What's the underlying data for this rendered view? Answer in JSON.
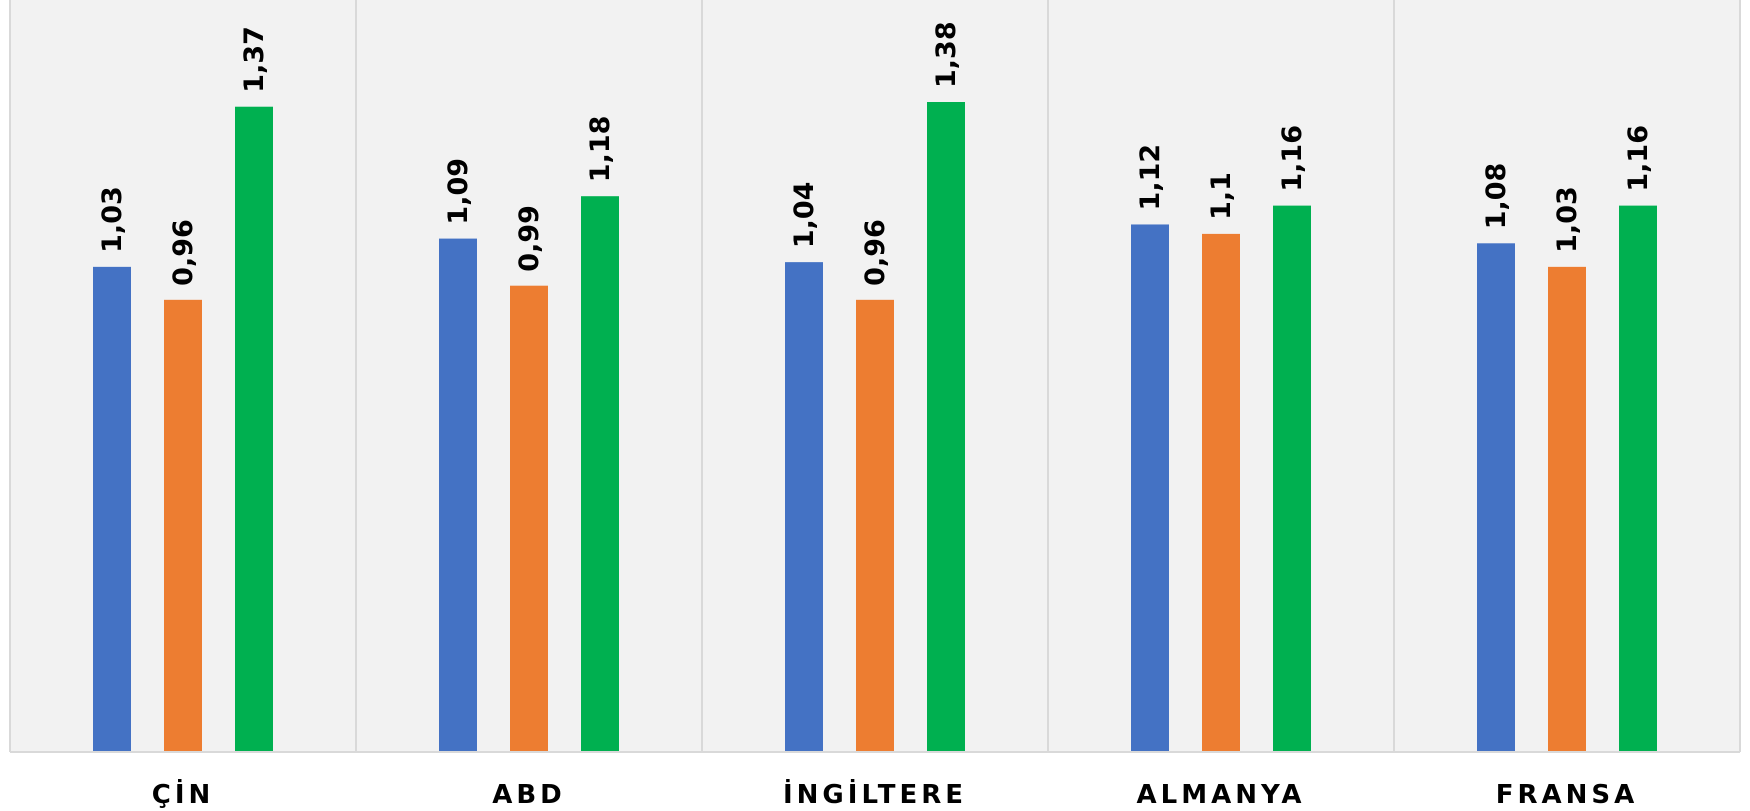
{
  "chart_data": {
    "type": "bar",
    "categories": [
      "ÇİN",
      "ABD",
      "İNGİLTERE",
      "ALMANYA",
      "FRANSA"
    ],
    "series": [
      {
        "values": [
          1.03,
          1.09,
          1.04,
          1.12,
          1.08
        ],
        "labels": [
          "1,03",
          "1,09",
          "1,04",
          "1,12",
          "1,08"
        ],
        "color": "#4472C4"
      },
      {
        "values": [
          0.96,
          0.99,
          0.96,
          1.1,
          1.03
        ],
        "labels": [
          "0,96",
          "0,99",
          "0,96",
          "1,1",
          "1,03"
        ],
        "color": "#ED7D31"
      },
      {
        "values": [
          1.37,
          1.18,
          1.38,
          1.16,
          1.16
        ],
        "labels": [
          "1,37",
          "1,18",
          "1,38",
          "1,16",
          "1,16"
        ],
        "color": "#00B050"
      }
    ],
    "ylim": [
      0,
      1.6
    ],
    "grid": false,
    "colors": {
      "plot_background": "#F2F2F2",
      "separator": "#D9D9D9",
      "axis": "#D9D9D9"
    }
  }
}
